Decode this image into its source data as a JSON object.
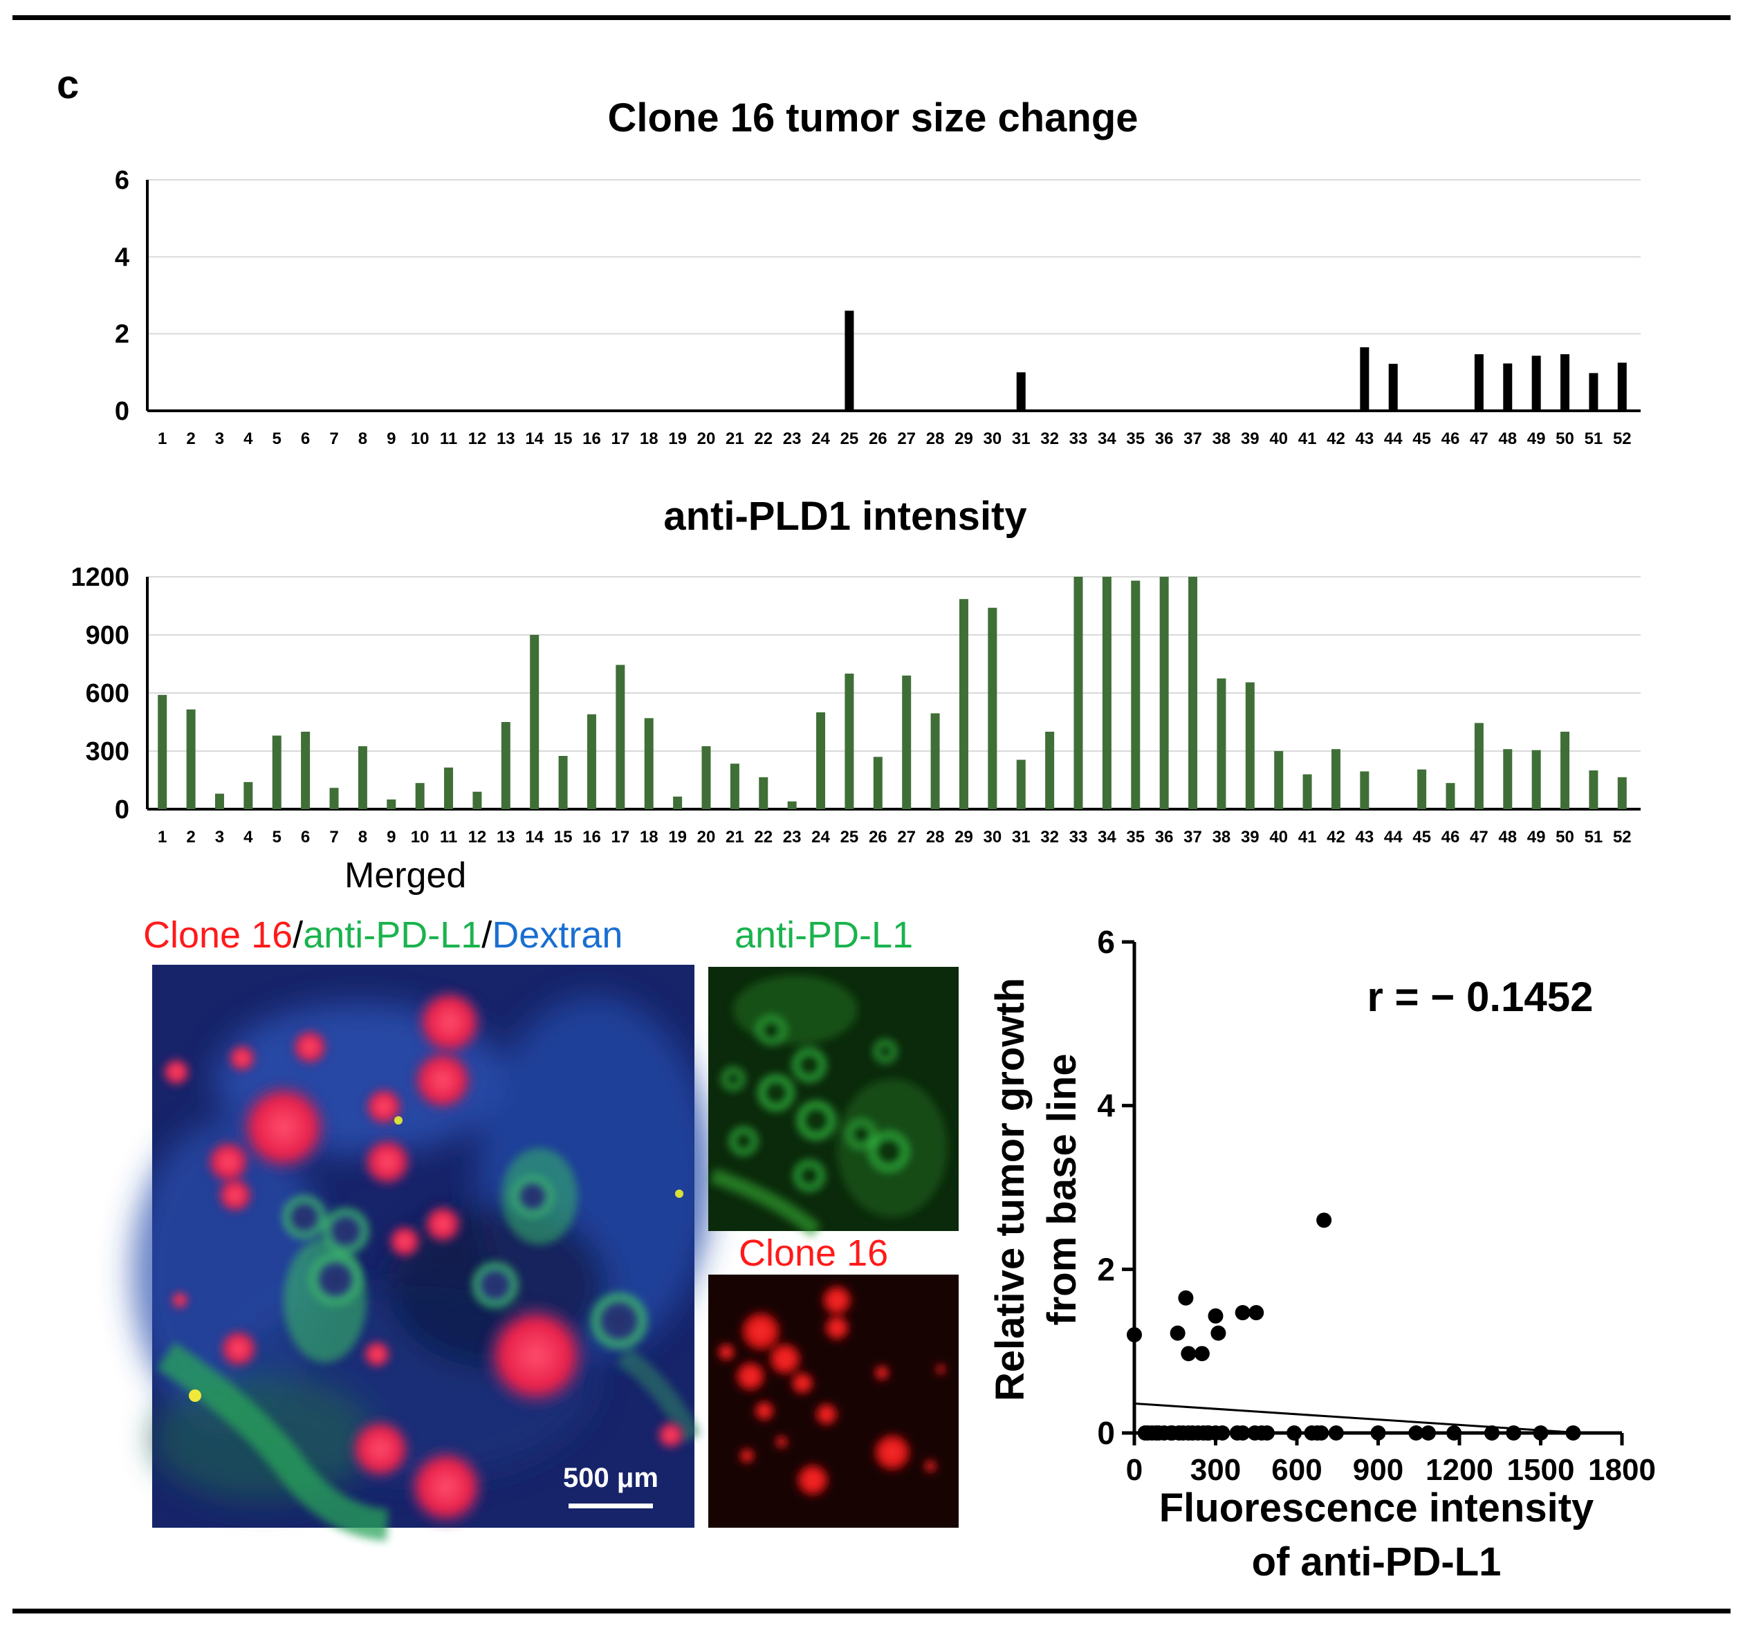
{
  "panel_letter": "c",
  "chart_data": [
    {
      "type": "bar",
      "title": "Clone 16 tumor size change",
      "categories": [
        "1",
        "2",
        "3",
        "4",
        "5",
        "6",
        "7",
        "8",
        "9",
        "10",
        "11",
        "12",
        "13",
        "14",
        "15",
        "16",
        "17",
        "18",
        "19",
        "20",
        "21",
        "22",
        "23",
        "24",
        "25",
        "26",
        "27",
        "28",
        "29",
        "30",
        "31",
        "32",
        "33",
        "34",
        "35",
        "36",
        "37",
        "38",
        "39",
        "40",
        "41",
        "42",
        "43",
        "44",
        "45",
        "46",
        "47",
        "48",
        "49",
        "50",
        "51",
        "52"
      ],
      "values": [
        0,
        0,
        0,
        0,
        0,
        0,
        0,
        0,
        0,
        0,
        0,
        0,
        0,
        0,
        0,
        0,
        0,
        0,
        0,
        0,
        0,
        0,
        0,
        0,
        2.6,
        0,
        0,
        0,
        0,
        0,
        1.0,
        0,
        0,
        0,
        0,
        0,
        0,
        0,
        0,
        0,
        0,
        0,
        1.65,
        1.22,
        0,
        0,
        1.47,
        1.23,
        1.43,
        1.47,
        0.98,
        1.25
      ],
      "yticks": [
        0,
        2,
        4,
        6
      ],
      "ylim": [
        0,
        6
      ],
      "bar_color": "#000000",
      "grid": true
    },
    {
      "type": "bar",
      "title": "anti-PLD1 intensity",
      "categories": [
        "1",
        "2",
        "3",
        "4",
        "5",
        "6",
        "7",
        "8",
        "9",
        "10",
        "11",
        "12",
        "13",
        "14",
        "15",
        "16",
        "17",
        "18",
        "19",
        "20",
        "21",
        "22",
        "23",
        "24",
        "25",
        "26",
        "27",
        "28",
        "29",
        "30",
        "31",
        "32",
        "33",
        "34",
        "35",
        "36",
        "37",
        "38",
        "39",
        "40",
        "41",
        "42",
        "43",
        "44",
        "45",
        "46",
        "47",
        "48",
        "49",
        "50",
        "51",
        "52"
      ],
      "values": [
        590,
        515,
        80,
        140,
        380,
        400,
        110,
        325,
        50,
        135,
        215,
        90,
        450,
        900,
        275,
        490,
        745,
        470,
        65,
        325,
        235,
        165,
        40,
        500,
        700,
        270,
        690,
        495,
        1085,
        1040,
        255,
        400,
        1200,
        1200,
        1180,
        1200,
        1200,
        675,
        655,
        300,
        180,
        310,
        195,
        0,
        205,
        135,
        445,
        310,
        305,
        400,
        200,
        165
      ],
      "yticks": [
        0,
        300,
        600,
        900,
        1200
      ],
      "ylim": [
        0,
        1200
      ],
      "bar_color": "#3f6f36",
      "grid": true
    },
    {
      "type": "scatter",
      "xlabel": "Fluorescence intensity of anti-PD-L1",
      "ylabel": "Relative tumor growth from base line",
      "xticks": [
        0,
        300,
        600,
        900,
        1200,
        1500,
        1800
      ],
      "yticks": [
        0,
        2,
        4,
        6
      ],
      "xlim": [
        0,
        1800
      ],
      "ylim": [
        0,
        6
      ],
      "annotation": "r = − 0.1452",
      "points": [
        {
          "x": 0,
          "y": 1.2
        },
        {
          "x": 160,
          "y": 1.22
        },
        {
          "x": 190,
          "y": 1.65
        },
        {
          "x": 200,
          "y": 0.97
        },
        {
          "x": 250,
          "y": 0.97
        },
        {
          "x": 300,
          "y": 1.43
        },
        {
          "x": 310,
          "y": 1.22
        },
        {
          "x": 400,
          "y": 1.47
        },
        {
          "x": 450,
          "y": 1.47
        },
        {
          "x": 700,
          "y": 2.6
        },
        {
          "x": 40,
          "y": 0
        },
        {
          "x": 50,
          "y": 0
        },
        {
          "x": 65,
          "y": 0
        },
        {
          "x": 80,
          "y": 0
        },
        {
          "x": 90,
          "y": 0
        },
        {
          "x": 110,
          "y": 0
        },
        {
          "x": 135,
          "y": 0
        },
        {
          "x": 140,
          "y": 0
        },
        {
          "x": 165,
          "y": 0
        },
        {
          "x": 180,
          "y": 0
        },
        {
          "x": 200,
          "y": 0
        },
        {
          "x": 215,
          "y": 0
        },
        {
          "x": 235,
          "y": 0
        },
        {
          "x": 255,
          "y": 0
        },
        {
          "x": 270,
          "y": 0
        },
        {
          "x": 275,
          "y": 0
        },
        {
          "x": 300,
          "y": 0
        },
        {
          "x": 325,
          "y": 0
        },
        {
          "x": 380,
          "y": 0
        },
        {
          "x": 400,
          "y": 0
        },
        {
          "x": 445,
          "y": 0
        },
        {
          "x": 470,
          "y": 0
        },
        {
          "x": 490,
          "y": 0
        },
        {
          "x": 590,
          "y": 0
        },
        {
          "x": 655,
          "y": 0
        },
        {
          "x": 675,
          "y": 0
        },
        {
          "x": 690,
          "y": 0
        },
        {
          "x": 745,
          "y": 0
        },
        {
          "x": 900,
          "y": 0
        },
        {
          "x": 1040,
          "y": 0
        },
        {
          "x": 1085,
          "y": 0
        },
        {
          "x": 1180,
          "y": 0
        },
        {
          "x": 1320,
          "y": 0
        },
        {
          "x": 1400,
          "y": 0
        },
        {
          "x": 1500,
          "y": 0
        },
        {
          "x": 1620,
          "y": 0
        }
      ],
      "fit_line": {
        "x0": 0,
        "y0": 0.36,
        "x1": 1650,
        "y1": 0.0
      }
    }
  ],
  "images": {
    "merged": {
      "heading": "Merged",
      "label_parts": [
        {
          "text": "Clone 16",
          "color": "#ff1a1a"
        },
        {
          "text": "/",
          "color": "#000000"
        },
        {
          "text": "anti-PD-L1",
          "color": "#1ab34d"
        },
        {
          "text": "/",
          "color": "#000000"
        },
        {
          "text": "Dextran",
          "color": "#1a6fd1"
        }
      ],
      "scale_bar": "500 μm"
    },
    "pdl1": {
      "label": "anti-PD-L1",
      "color": "#1ab34d"
    },
    "clone16": {
      "label": "Clone 16",
      "color": "#ff1a1a"
    }
  }
}
